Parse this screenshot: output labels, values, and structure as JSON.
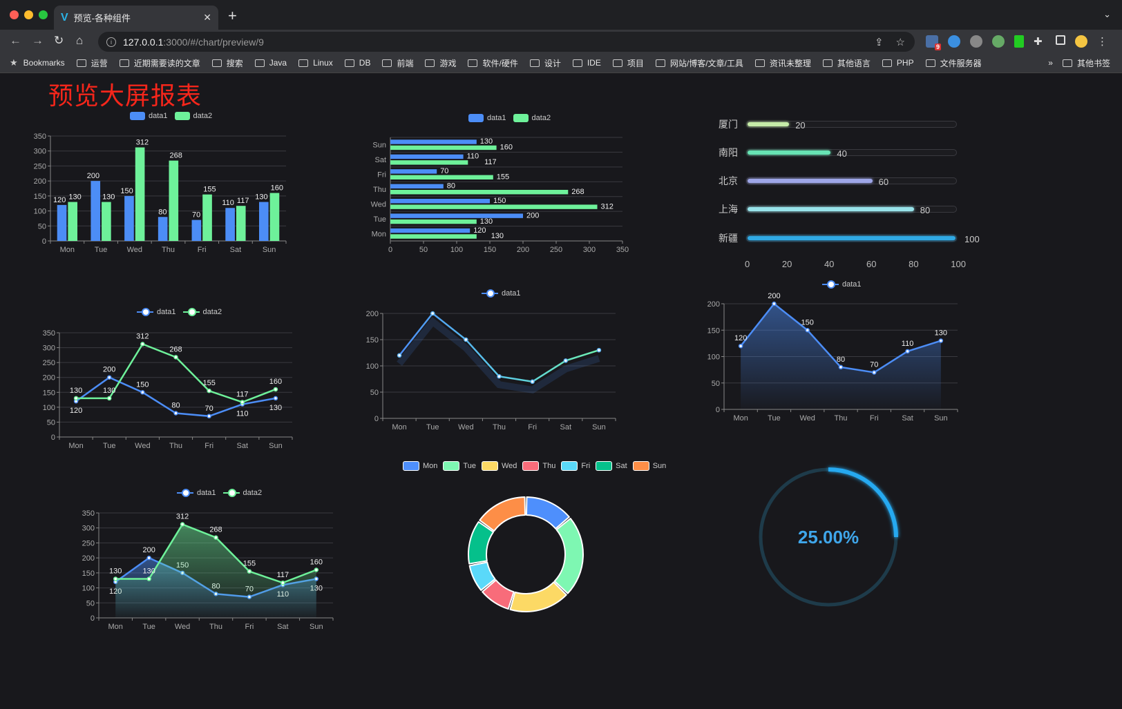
{
  "browser": {
    "tab_title": "预览-各种组件",
    "url_host": "127.0.0.1",
    "url_path": ":3000/#/chart/preview/9",
    "bookmarks_label": "Bookmarks",
    "bookmarks": [
      "运营",
      "近期需要读的文章",
      "搜索",
      "Java",
      "Linux",
      "DB",
      "前端",
      "游戏",
      "软件/硬件",
      "设计",
      "IDE",
      "项目",
      "网站/博客/文章/工具",
      "资讯未整理",
      "其他语言",
      "PHP",
      "文件服务器"
    ],
    "more": "»",
    "other_bookmarks": "其他书签",
    "ext_badge": "9"
  },
  "page": {
    "title": "预览大屏报表"
  },
  "colors": {
    "data1": "#4c8df6",
    "data2": "#6ef19a",
    "bg": "#18181c",
    "title": "#f5261b",
    "pie": [
      "#4e8ffc",
      "#7ef7b2",
      "#fcd965",
      "#f86c7a",
      "#5ad9f9",
      "#05c08b",
      "#fd8e47"
    ],
    "progress": [
      "#c6eca8",
      "#67e3b4",
      "#9ea6e8",
      "#98e3ea",
      "#30a9e4"
    ],
    "gauge": "#25a9f0",
    "gauge_track": "#1e3b4a"
  },
  "legend_labels": {
    "data1": "data1",
    "data2": "data2"
  },
  "progress": {
    "items": [
      {
        "label": "厦门",
        "value": 20
      },
      {
        "label": "南阳",
        "value": 40
      },
      {
        "label": "北京",
        "value": 60
      },
      {
        "label": "上海",
        "value": 80
      },
      {
        "label": "新疆",
        "value": 100
      }
    ],
    "axis": [
      "0",
      "20",
      "40",
      "60",
      "80",
      "100"
    ],
    "max": 100
  },
  "gauge": {
    "value": 0.25,
    "label": "25.00%"
  },
  "chart_data": [
    {
      "id": "bar",
      "type": "bar",
      "categories": [
        "Mon",
        "Tue",
        "Wed",
        "Thu",
        "Fri",
        "Sat",
        "Sun"
      ],
      "series": [
        {
          "name": "data1",
          "values": [
            120,
            200,
            150,
            80,
            70,
            110,
            130
          ]
        },
        {
          "name": "data2",
          "values": [
            130,
            130,
            312,
            268,
            155,
            117,
            160
          ]
        }
      ],
      "ylim": [
        0,
        350
      ],
      "ystep": 50,
      "labels": true
    },
    {
      "id": "hbar",
      "type": "hbar",
      "categories": [
        "Mon",
        "Tue",
        "Wed",
        "Thu",
        "Fri",
        "Sat",
        "Sun"
      ],
      "series": [
        {
          "name": "data1",
          "values": [
            120,
            200,
            150,
            80,
            70,
            110,
            130
          ]
        },
        {
          "name": "data2",
          "values": [
            130,
            130,
            312,
            268,
            155,
            117,
            160
          ]
        }
      ],
      "xlim": [
        0,
        350
      ],
      "xstep": 50,
      "labels": true
    },
    {
      "id": "line2",
      "type": "line",
      "categories": [
        "Mon",
        "Tue",
        "Wed",
        "Thu",
        "Fri",
        "Sat",
        "Sun"
      ],
      "series": [
        {
          "name": "data1",
          "values": [
            120,
            200,
            150,
            80,
            70,
            110,
            130
          ]
        },
        {
          "name": "data2",
          "values": [
            130,
            130,
            312,
            268,
            155,
            117,
            160
          ]
        }
      ],
      "ylim": [
        0,
        350
      ],
      "ystep": 50,
      "labels": true
    },
    {
      "id": "line1",
      "type": "line",
      "categories": [
        "Mon",
        "Tue",
        "Wed",
        "Thu",
        "Fri",
        "Sat",
        "Sun"
      ],
      "series": [
        {
          "name": "data1",
          "values": [
            120,
            200,
            150,
            80,
            70,
            110,
            130
          ]
        }
      ],
      "ylim": [
        0,
        200
      ],
      "ystep": 50,
      "labels": false
    },
    {
      "id": "area1",
      "type": "area",
      "categories": [
        "Mon",
        "Tue",
        "Wed",
        "Thu",
        "Fri",
        "Sat",
        "Sun"
      ],
      "series": [
        {
          "name": "data1",
          "values": [
            120,
            200,
            150,
            80,
            70,
            110,
            130
          ]
        }
      ],
      "ylim": [
        0,
        200
      ],
      "ystep": 50,
      "labels": true
    },
    {
      "id": "area2",
      "type": "area",
      "categories": [
        "Mon",
        "Tue",
        "Wed",
        "Thu",
        "Fri",
        "Sat",
        "Sun"
      ],
      "series": [
        {
          "name": "data1",
          "values": [
            120,
            200,
            150,
            80,
            70,
            110,
            130
          ]
        },
        {
          "name": "data2",
          "values": [
            130,
            130,
            312,
            268,
            155,
            117,
            160
          ]
        }
      ],
      "ylim": [
        0,
        350
      ],
      "ystep": 50,
      "labels": true
    },
    {
      "id": "donut",
      "type": "pie",
      "categories": [
        "Mon",
        "Tue",
        "Wed",
        "Thu",
        "Fri",
        "Sat",
        "Sun"
      ],
      "values": [
        120,
        200,
        150,
        80,
        70,
        110,
        130
      ],
      "legend": "top"
    }
  ]
}
